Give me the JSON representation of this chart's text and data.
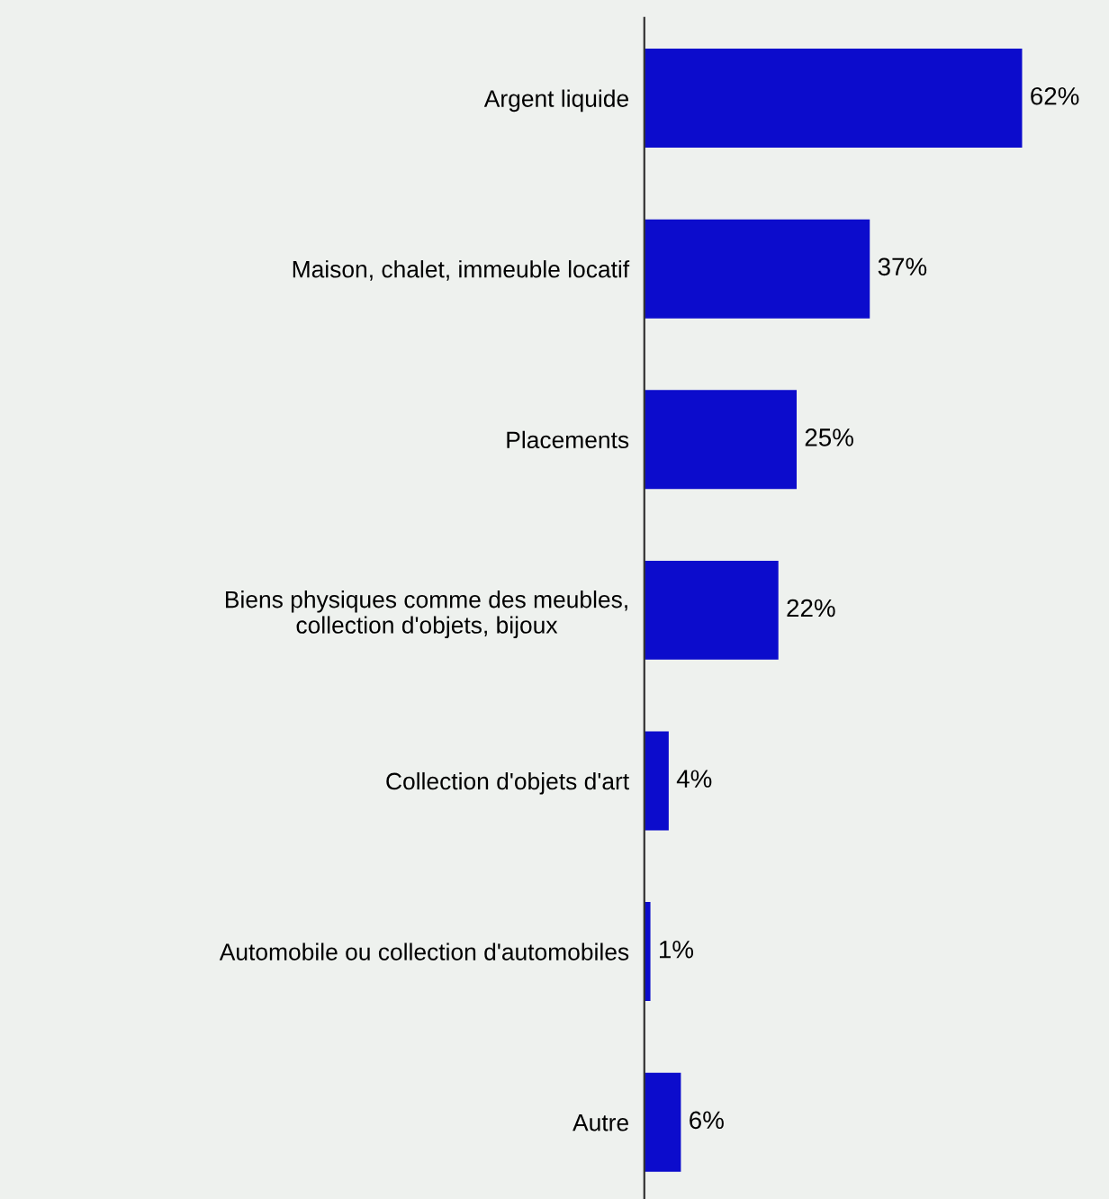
{
  "chart_data": {
    "type": "bar",
    "orientation": "horizontal",
    "categories": [
      "Argent liquide",
      "Maison, chalet, immeuble locatif",
      "Placements",
      "Biens physiques comme des meubles,\ncollection d'objets, bijoux",
      "Collection d'objets d'art",
      "Automobile ou collection d'automobiles",
      "Autre"
    ],
    "values": [
      62,
      37,
      25,
      22,
      4,
      1,
      6
    ],
    "value_labels": [
      "62%",
      "37%",
      "25%",
      "22%",
      "4%",
      "1%",
      "6%"
    ],
    "color": "#0c0ccc",
    "grid": false,
    "legend": false,
    "tick_labels": "y"
  }
}
